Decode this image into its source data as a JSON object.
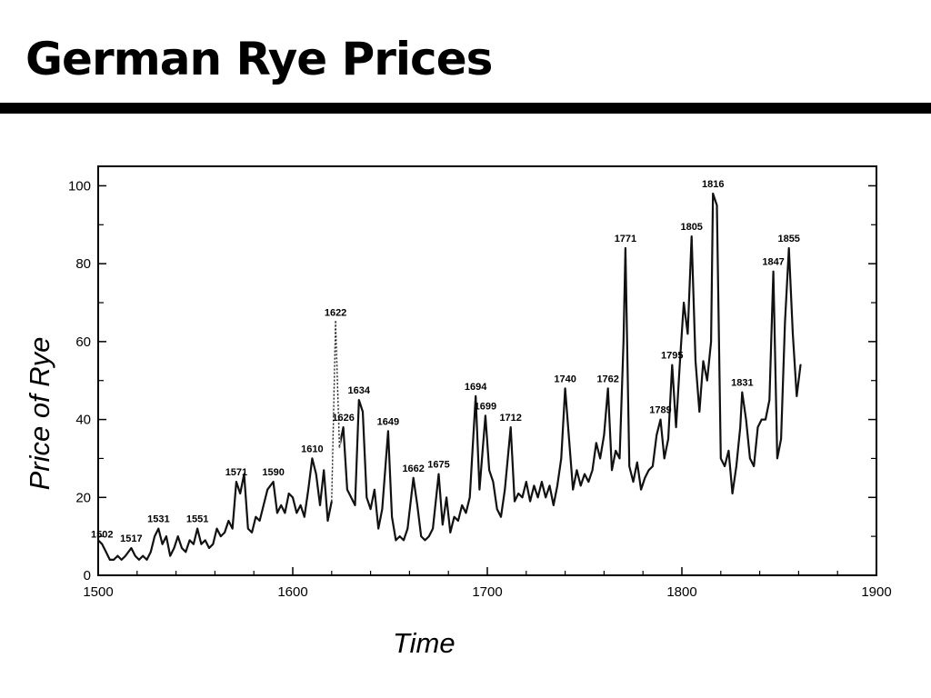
{
  "slide": {
    "title": "German Rye Prices"
  },
  "chart_data": {
    "type": "line",
    "title": "",
    "xlabel": "Time",
    "ylabel": "Price of Rye",
    "xlim": [
      1500,
      1900
    ],
    "ylim": [
      0,
      105
    ],
    "xticks": [
      1500,
      1600,
      1700,
      1800,
      1900
    ],
    "yticks": [
      0,
      20,
      40,
      60,
      80,
      100
    ],
    "grid": false,
    "series": [
      {
        "values": [
          [
            1500,
            9
          ],
          [
            1502,
            8
          ],
          [
            1504,
            6
          ],
          [
            1506,
            4
          ],
          [
            1508,
            4
          ],
          [
            1510,
            5
          ],
          [
            1512,
            4
          ],
          [
            1514,
            5
          ],
          [
            1517,
            7
          ],
          [
            1519,
            5
          ],
          [
            1521,
            4
          ],
          [
            1523,
            5
          ],
          [
            1525,
            4
          ],
          [
            1527,
            6
          ],
          [
            1529,
            10
          ],
          [
            1531,
            12
          ],
          [
            1533,
            8
          ],
          [
            1535,
            10
          ],
          [
            1537,
            5
          ],
          [
            1539,
            7
          ],
          [
            1541,
            10
          ],
          [
            1543,
            7
          ],
          [
            1545,
            6
          ],
          [
            1547,
            9
          ],
          [
            1549,
            8
          ],
          [
            1551,
            12
          ],
          [
            1553,
            8
          ],
          [
            1555,
            9
          ],
          [
            1557,
            7
          ],
          [
            1559,
            8
          ],
          [
            1561,
            12
          ],
          [
            1563,
            10
          ],
          [
            1565,
            11
          ],
          [
            1567,
            14
          ],
          [
            1569,
            12
          ],
          [
            1571,
            24
          ],
          [
            1573,
            21
          ],
          [
            1575,
            26
          ],
          [
            1577,
            12
          ],
          [
            1579,
            11
          ],
          [
            1581,
            15
          ],
          [
            1583,
            14
          ],
          [
            1585,
            18
          ],
          [
            1587,
            22
          ],
          [
            1590,
            24
          ],
          [
            1592,
            16
          ],
          [
            1594,
            18
          ],
          [
            1596,
            16
          ],
          [
            1598,
            21
          ],
          [
            1600,
            20
          ],
          [
            1602,
            16
          ],
          [
            1604,
            18
          ],
          [
            1606,
            15
          ],
          [
            1608,
            22
          ],
          [
            1610,
            30
          ],
          [
            1612,
            26
          ],
          [
            1614,
            18
          ],
          [
            1616,
            27
          ],
          [
            1618,
            14
          ],
          [
            1620,
            19
          ],
          [
            1622,
            65
          ],
          [
            1624,
            33
          ],
          [
            1626,
            38
          ],
          [
            1628,
            22
          ],
          [
            1630,
            20
          ],
          [
            1632,
            18
          ],
          [
            1634,
            45
          ],
          [
            1636,
            42
          ],
          [
            1638,
            20
          ],
          [
            1640,
            17
          ],
          [
            1642,
            22
          ],
          [
            1644,
            12
          ],
          [
            1646,
            17
          ],
          [
            1649,
            37
          ],
          [
            1651,
            15
          ],
          [
            1653,
            9
          ],
          [
            1655,
            10
          ],
          [
            1657,
            9
          ],
          [
            1659,
            12
          ],
          [
            1662,
            25
          ],
          [
            1664,
            18
          ],
          [
            1666,
            10
          ],
          [
            1668,
            9
          ],
          [
            1670,
            10
          ],
          [
            1672,
            12
          ],
          [
            1675,
            26
          ],
          [
            1677,
            13
          ],
          [
            1679,
            20
          ],
          [
            1681,
            11
          ],
          [
            1683,
            15
          ],
          [
            1685,
            14
          ],
          [
            1687,
            18
          ],
          [
            1689,
            16
          ],
          [
            1691,
            20
          ],
          [
            1694,
            46
          ],
          [
            1696,
            22
          ],
          [
            1699,
            41
          ],
          [
            1701,
            27
          ],
          [
            1703,
            24
          ],
          [
            1705,
            17
          ],
          [
            1707,
            15
          ],
          [
            1709,
            22
          ],
          [
            1712,
            38
          ],
          [
            1714,
            19
          ],
          [
            1716,
            21
          ],
          [
            1718,
            20
          ],
          [
            1720,
            24
          ],
          [
            1722,
            19
          ],
          [
            1724,
            23
          ],
          [
            1726,
            20
          ],
          [
            1728,
            24
          ],
          [
            1730,
            20
          ],
          [
            1732,
            23
          ],
          [
            1734,
            18
          ],
          [
            1736,
            23
          ],
          [
            1738,
            30
          ],
          [
            1740,
            48
          ],
          [
            1742,
            35
          ],
          [
            1744,
            22
          ],
          [
            1746,
            27
          ],
          [
            1748,
            23
          ],
          [
            1750,
            26
          ],
          [
            1752,
            24
          ],
          [
            1754,
            27
          ],
          [
            1756,
            34
          ],
          [
            1758,
            30
          ],
          [
            1760,
            36
          ],
          [
            1762,
            48
          ],
          [
            1764,
            27
          ],
          [
            1766,
            32
          ],
          [
            1768,
            30
          ],
          [
            1770,
            60
          ],
          [
            1771,
            84
          ],
          [
            1773,
            28
          ],
          [
            1775,
            24
          ],
          [
            1777,
            29
          ],
          [
            1779,
            22
          ],
          [
            1781,
            25
          ],
          [
            1783,
            27
          ],
          [
            1785,
            28
          ],
          [
            1787,
            36
          ],
          [
            1789,
            40
          ],
          [
            1791,
            30
          ],
          [
            1793,
            35
          ],
          [
            1795,
            54
          ],
          [
            1797,
            38
          ],
          [
            1799,
            55
          ],
          [
            1801,
            70
          ],
          [
            1803,
            62
          ],
          [
            1805,
            87
          ],
          [
            1807,
            55
          ],
          [
            1809,
            42
          ],
          [
            1811,
            55
          ],
          [
            1813,
            50
          ],
          [
            1815,
            60
          ],
          [
            1816,
            98
          ],
          [
            1818,
            95
          ],
          [
            1820,
            30
          ],
          [
            1822,
            28
          ],
          [
            1824,
            32
          ],
          [
            1826,
            21
          ],
          [
            1828,
            28
          ],
          [
            1830,
            38
          ],
          [
            1831,
            47
          ],
          [
            1833,
            40
          ],
          [
            1835,
            30
          ],
          [
            1837,
            28
          ],
          [
            1839,
            38
          ],
          [
            1841,
            40
          ],
          [
            1843,
            40
          ],
          [
            1845,
            45
          ],
          [
            1847,
            78
          ],
          [
            1849,
            30
          ],
          [
            1851,
            35
          ],
          [
            1853,
            65
          ],
          [
            1855,
            84
          ],
          [
            1857,
            62
          ],
          [
            1859,
            46
          ],
          [
            1861,
            54
          ]
        ]
      }
    ],
    "annotations": [
      {
        "x": 1502,
        "y": 8,
        "label": "1502"
      },
      {
        "x": 1517,
        "y": 7,
        "label": "1517"
      },
      {
        "x": 1531,
        "y": 12,
        "label": "1531"
      },
      {
        "x": 1551,
        "y": 12,
        "label": "1551"
      },
      {
        "x": 1571,
        "y": 24,
        "label": "1571"
      },
      {
        "x": 1590,
        "y": 24,
        "label": "1590"
      },
      {
        "x": 1610,
        "y": 30,
        "label": "1610"
      },
      {
        "x": 1622,
        "y": 65,
        "label": "1622"
      },
      {
        "x": 1626,
        "y": 38,
        "label": "1626"
      },
      {
        "x": 1634,
        "y": 45,
        "label": "1634"
      },
      {
        "x": 1649,
        "y": 37,
        "label": "1649"
      },
      {
        "x": 1662,
        "y": 25,
        "label": "1662"
      },
      {
        "x": 1675,
        "y": 26,
        "label": "1675"
      },
      {
        "x": 1694,
        "y": 46,
        "label": "1694"
      },
      {
        "x": 1699,
        "y": 41,
        "label": "1699"
      },
      {
        "x": 1712,
        "y": 38,
        "label": "1712"
      },
      {
        "x": 1740,
        "y": 48,
        "label": "1740"
      },
      {
        "x": 1762,
        "y": 48,
        "label": "1762"
      },
      {
        "x": 1771,
        "y": 84,
        "label": "1771"
      },
      {
        "x": 1789,
        "y": 40,
        "label": "1789"
      },
      {
        "x": 1795,
        "y": 54,
        "label": "1795"
      },
      {
        "x": 1805,
        "y": 87,
        "label": "1805"
      },
      {
        "x": 1816,
        "y": 98,
        "label": "1816"
      },
      {
        "x": 1831,
        "y": 47,
        "label": "1831"
      },
      {
        "x": 1847,
        "y": 78,
        "label": "1847"
      },
      {
        "x": 1855,
        "y": 84,
        "label": "1855"
      }
    ]
  }
}
